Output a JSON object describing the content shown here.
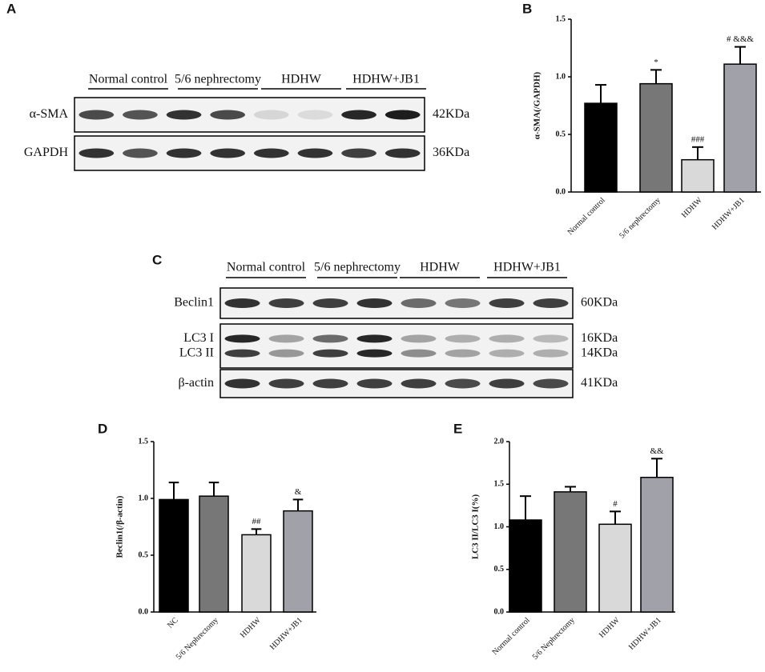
{
  "blots": [
    {
      "panel": "A",
      "groups": [
        "Normal control",
        "5/6 nephrectomy",
        "HDHW",
        "HDHW+JB1"
      ],
      "rows": [
        {
          "labels": [
            "α-SMA"
          ],
          "sizes": [
            "42KDa"
          ]
        },
        {
          "labels": [
            "GAPDH"
          ],
          "sizes": [
            "36KDa"
          ]
        }
      ]
    },
    {
      "panel": "C",
      "groups": [
        "Normal control",
        "5/6 nephrectomy",
        "HDHW",
        "HDHW+JB1"
      ],
      "rows": [
        {
          "labels": [
            "Beclin1"
          ],
          "sizes": [
            "60KDa"
          ]
        },
        {
          "labels": [
            "LC3 I",
            "LC3 II"
          ],
          "sizes": [
            "16KDa",
            "14KDa"
          ]
        },
        {
          "labels": [
            "β-actin"
          ],
          "sizes": [
            "41KDa"
          ]
        }
      ]
    }
  ],
  "chart_data": [
    {
      "type": "bar",
      "panel": "B",
      "y_label": "α-SMA(/GAPDH)",
      "categories": [
        "Normal control",
        "5/6 nephrectomy",
        "HDHW",
        "HDHW+JB1"
      ],
      "values": [
        0.77,
        0.94,
        0.28,
        1.11
      ],
      "errors": [
        0.16,
        0.12,
        0.11,
        0.15
      ],
      "annotations": [
        null,
        "*",
        "###",
        "# &&&"
      ],
      "colors": [
        "#000000",
        "#777777",
        "#d9d9d9",
        "#a1a1a9"
      ],
      "ylim": [
        0,
        1.5
      ],
      "yticks": [
        {
          "value": 0,
          "label": "0.0"
        },
        0.5,
        {
          "value": 1,
          "label": "1.0"
        },
        1.5
      ]
    },
    {
      "type": "bar",
      "panel": "D",
      "y_label": "Beclin1(/β-actin)",
      "categories": [
        "NC",
        "5/6 Nephrectomy",
        "HDHW",
        "HDHW+JB1"
      ],
      "values": [
        0.99,
        1.02,
        0.68,
        0.89
      ],
      "errors": [
        0.15,
        0.12,
        0.05,
        0.1
      ],
      "annotations": [
        null,
        null,
        "##",
        "&"
      ],
      "colors": [
        "#000000",
        "#777777",
        "#d9d9d9",
        "#a1a1a9"
      ],
      "ylim": [
        0,
        1.5
      ],
      "yticks": [
        {
          "value": 0,
          "label": "0.0"
        },
        0.5,
        {
          "value": 1,
          "label": "1.0"
        },
        1.5
      ]
    },
    {
      "type": "bar",
      "panel": "E",
      "y_label": "LC3 II/LC3 I(%)",
      "categories": [
        "Normal control",
        "5/6 Nephrectomy",
        "HDHW",
        "HDHW+JB1"
      ],
      "values": [
        1.08,
        1.41,
        1.03,
        1.58
      ],
      "errors": [
        0.28,
        0.06,
        0.15,
        0.22
      ],
      "annotations": [
        null,
        null,
        "#",
        "&&"
      ],
      "colors": [
        "#000000",
        "#777777",
        "#d9d9d9",
        "#a1a1a9"
      ],
      "ylim": [
        0,
        2
      ],
      "yticks": [
        {
          "value": 0,
          "label": "0.0"
        },
        0.5,
        {
          "value": 1,
          "label": "1.0"
        },
        1.5,
        {
          "value": 2,
          "label": "2.0"
        }
      ]
    }
  ]
}
